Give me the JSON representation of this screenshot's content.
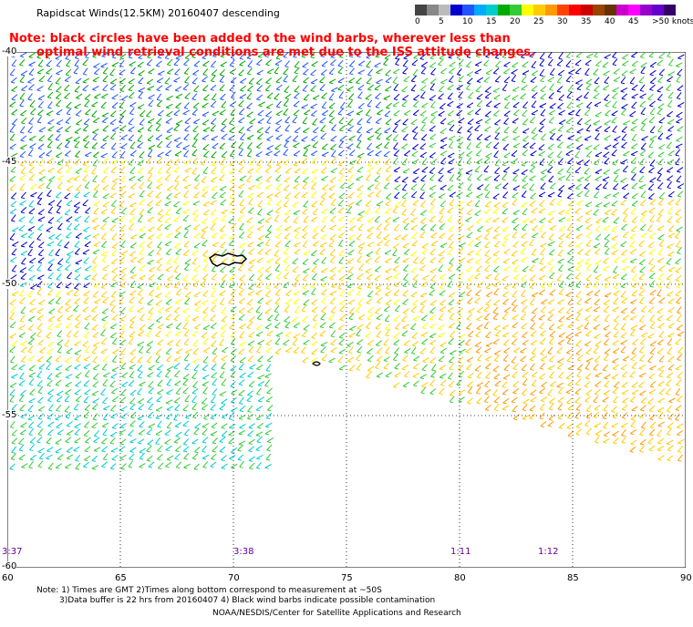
{
  "header": {
    "title": "Rapidscat Winds(12.5KM) 20160407 descending",
    "note_line1": "Note: black circles have been added to the wind barbs, wherever less than",
    "note_line2": "optimal wind retrieval conditions are met due to the ISS attitude changes."
  },
  "legend": {
    "colors": [
      "#444444",
      "#888888",
      "#bbbbbb",
      "#0000cc",
      "#2255ff",
      "#00aaff",
      "#00cccc",
      "#00aa00",
      "#33cc33",
      "#ffff00",
      "#ffcc00",
      "#ff9900",
      "#ff4400",
      "#ff0000",
      "#cc0000",
      "#994400",
      "#663300",
      "#cc00cc",
      "#ff00ff",
      "#9900cc",
      "#6600cc",
      "#330066"
    ],
    "labels": [
      "0",
      "5",
      "10",
      "15",
      "20",
      "25",
      "30",
      "35",
      "40",
      "45",
      ">50 knots"
    ]
  },
  "axes": {
    "lon_labels": [
      "60",
      "65",
      "70",
      "75",
      "80",
      "85",
      "90"
    ],
    "lat_labels": [
      "-40",
      "-45",
      "-50",
      "-55",
      "-60"
    ]
  },
  "times": [
    "3:37",
    "3:38",
    "1:11",
    "1:12"
  ],
  "footer": {
    "line1": "Note: 1) Times are GMT 2)Times along bottom correspond to measurement at ~50S",
    "line2": "3)Data buffer is 22 hrs from 20160407 4) Black wind barbs indicate possible contamination",
    "credit": "NOAA/NESDIS/Center for Satellite Applications and Research"
  }
}
